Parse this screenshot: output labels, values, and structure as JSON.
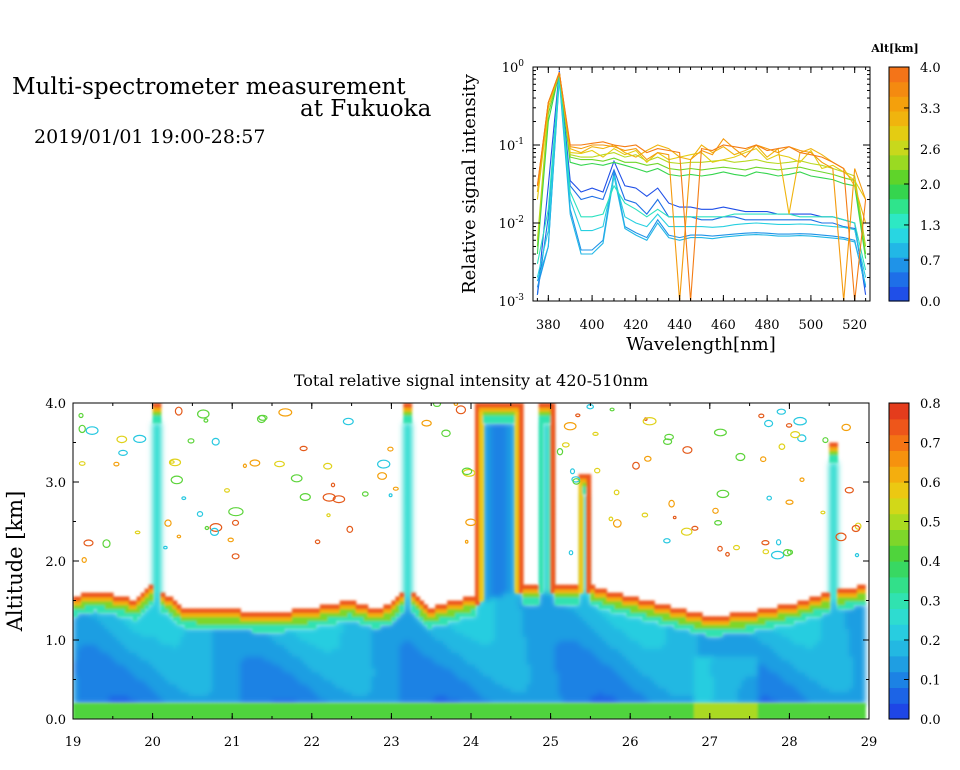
{
  "header": {
    "title_line1": "Multi-spectrometer measurement",
    "title_line2": "at Fukuoka",
    "datetime": "2019/01/01 19:00-28:57"
  },
  "chart_data": [
    {
      "type": "line",
      "title": "",
      "xlabel": "Wavelength[nm]",
      "ylabel": "Relative signal intensity",
      "xlim": [
        373,
        527
      ],
      "ylim": [
        0.001,
        1
      ],
      "yscale": "log",
      "x_ticks": [
        380,
        400,
        420,
        440,
        460,
        480,
        500,
        520
      ],
      "y_ticks": [
        {
          "value": 0.001,
          "base": "10",
          "exp": "-3"
        },
        {
          "value": 0.01,
          "base": "10",
          "exp": "-2"
        },
        {
          "value": 0.1,
          "base": "10",
          "exp": "-1"
        },
        {
          "value": 1,
          "base": "10",
          "exp": "0"
        }
      ],
      "x": [
        375,
        380,
        385,
        390,
        395,
        400,
        405,
        410,
        415,
        420,
        425,
        430,
        435,
        440,
        445,
        450,
        455,
        460,
        465,
        470,
        475,
        480,
        485,
        490,
        495,
        500,
        505,
        510,
        515,
        520,
        525
      ],
      "colorbar": {
        "label": "Alt[km]",
        "tick_labels": [
          "0.0",
          "0.7",
          "1.3",
          "2.0",
          "2.6",
          "3.3",
          "4.0"
        ],
        "range": [
          0,
          4
        ],
        "colors": [
          "#1f4fe8",
          "#1e6fe8",
          "#1f93e8",
          "#22b7e6",
          "#28d6e2",
          "#2de8c4",
          "#2fe48c",
          "#35d54e",
          "#5fd42a",
          "#9ada22",
          "#c8d81c",
          "#e4cc12",
          "#f0b40e",
          "#f4a00c",
          "#f48a10",
          "#f47418"
        ]
      },
      "series": [
        {
          "altitude": 0.3,
          "color": "#1f4fe8",
          "values": [
            0.0012,
            0.03,
            0.9,
            0.035,
            0.025,
            0.028,
            0.025,
            0.062,
            0.03,
            0.028,
            0.022,
            0.028,
            0.018,
            0.016,
            0.016,
            0.015,
            0.015,
            0.016,
            0.015,
            0.014,
            0.014,
            0.014,
            0.013,
            0.013,
            0.013,
            0.013,
            0.012,
            0.012,
            0.011,
            0.01,
            0.0012
          ]
        },
        {
          "altitude": 0.6,
          "color": "#1e70e6",
          "values": [
            0.0012,
            0.012,
            0.8,
            0.03,
            0.02,
            0.022,
            0.02,
            0.048,
            0.02,
            0.018,
            0.013,
            0.02,
            0.012,
            0.012,
            0.012,
            0.011,
            0.011,
            0.012,
            0.012,
            0.011,
            0.011,
            0.011,
            0.011,
            0.011,
            0.011,
            0.011,
            0.01,
            0.01,
            0.009,
            0.0085,
            0.0015
          ]
        },
        {
          "altitude": 0.9,
          "color": "#1f93e8",
          "values": [
            0.0015,
            0.005,
            0.75,
            0.015,
            0.0045,
            0.0045,
            0.006,
            0.045,
            0.009,
            0.0075,
            0.0065,
            0.011,
            0.007,
            0.0065,
            0.007,
            0.007,
            0.0068,
            0.007,
            0.0072,
            0.0074,
            0.0075,
            0.0074,
            0.0072,
            0.0072,
            0.0073,
            0.0072,
            0.007,
            0.0068,
            0.0065,
            0.006,
            0.0015
          ]
        },
        {
          "altitude": 1.1,
          "color": "#22b7e6",
          "values": [
            0.0018,
            0.005,
            0.7,
            0.013,
            0.004,
            0.004,
            0.0055,
            0.04,
            0.0085,
            0.007,
            0.006,
            0.01,
            0.0065,
            0.006,
            0.0065,
            0.0065,
            0.0063,
            0.0066,
            0.0068,
            0.007,
            0.0071,
            0.007,
            0.0068,
            0.0068,
            0.0069,
            0.0068,
            0.0066,
            0.0064,
            0.0062,
            0.0057,
            0.0016
          ]
        },
        {
          "altitude": 1.3,
          "color": "#28d0e0",
          "values": [
            0.002,
            0.008,
            0.75,
            0.02,
            0.008,
            0.008,
            0.009,
            0.04,
            0.012,
            0.01,
            0.009,
            0.013,
            0.009,
            0.009,
            0.009,
            0.009,
            0.0088,
            0.009,
            0.0095,
            0.0098,
            0.01,
            0.0098,
            0.0096,
            0.0096,
            0.0097,
            0.0096,
            0.0093,
            0.009,
            0.0088,
            0.0082,
            0.002
          ]
        },
        {
          "altitude": 1.5,
          "color": "#2de2c0",
          "values": [
            0.003,
            0.015,
            0.8,
            0.025,
            0.012,
            0.012,
            0.013,
            0.03,
            0.018,
            0.015,
            0.012,
            0.015,
            0.012,
            0.012,
            0.012,
            0.012,
            0.012,
            0.012,
            0.013,
            0.013,
            0.013,
            0.013,
            0.013,
            0.013,
            0.012,
            0.012,
            0.012,
            0.012,
            0.011,
            0.01,
            0.0025
          ]
        },
        {
          "altitude": 1.9,
          "color": "#35d54e",
          "values": [
            0.004,
            0.2,
            0.85,
            0.06,
            0.055,
            0.058,
            0.055,
            0.06,
            0.055,
            0.05,
            0.045,
            0.05,
            0.042,
            0.04,
            0.042,
            0.04,
            0.042,
            0.045,
            0.042,
            0.04,
            0.045,
            0.043,
            0.04,
            0.042,
            0.045,
            0.04,
            0.038,
            0.036,
            0.032,
            0.03,
            0.0035
          ]
        },
        {
          "altitude": 2.3,
          "color": "#6fd62a",
          "values": [
            0.005,
            0.25,
            0.85,
            0.07,
            0.065,
            0.065,
            0.062,
            0.068,
            0.06,
            0.06,
            0.055,
            0.058,
            0.05,
            0.048,
            0.05,
            0.048,
            0.05,
            0.052,
            0.05,
            0.048,
            0.052,
            0.05,
            0.048,
            0.05,
            0.052,
            0.048,
            0.045,
            0.042,
            0.038,
            0.035,
            0.004
          ]
        },
        {
          "altitude": 2.7,
          "color": "#b8d820",
          "values": [
            0.006,
            0.3,
            0.85,
            0.075,
            0.07,
            0.07,
            0.075,
            0.08,
            0.07,
            0.075,
            0.062,
            0.07,
            0.06,
            0.058,
            0.06,
            0.06,
            0.062,
            0.064,
            0.06,
            0.062,
            0.065,
            0.06,
            0.058,
            0.06,
            0.063,
            0.058,
            0.055,
            0.05,
            0.045,
            0.04,
            0.005
          ]
        },
        {
          "altitude": 3.0,
          "color": "#e4cc12",
          "values": [
            0.02,
            0.3,
            0.85,
            0.08,
            0.078,
            0.085,
            0.07,
            0.09,
            0.075,
            0.085,
            0.06,
            0.08,
            0.065,
            0.07,
            0.075,
            0.08,
            0.06,
            0.065,
            0.07,
            0.08,
            0.09,
            0.065,
            0.075,
            0.07,
            0.06,
            0.085,
            0.05,
            0.055,
            0.045,
            0.035,
            0.02
          ]
        },
        {
          "altitude": 3.3,
          "color": "#f0b40e",
          "values": [
            0.025,
            0.35,
            0.85,
            0.09,
            0.08,
            0.095,
            0.09,
            0.1,
            0.08,
            0.07,
            0.085,
            0.1,
            0.09,
            0.07,
            0.065,
            0.1,
            0.08,
            0.095,
            0.075,
            0.085,
            0.1,
            0.07,
            0.09,
            0.013,
            0.08,
            0.09,
            0.075,
            0.06,
            0.05,
            0.03,
            0.01
          ]
        },
        {
          "altitude": 3.6,
          "color": "#f49a0c",
          "values": [
            0.03,
            0.35,
            0.85,
            0.095,
            0.09,
            0.1,
            0.1,
            0.095,
            0.085,
            0.09,
            0.065,
            0.08,
            0.075,
            0.001,
            0.065,
            0.085,
            0.075,
            0.12,
            0.09,
            0.07,
            0.1,
            0.09,
            0.08,
            0.095,
            0.085,
            0.08,
            0.06,
            0.05,
            0.001,
            0.05,
            0.02
          ]
        },
        {
          "altitude": 3.9,
          "color": "#f47c14",
          "values": [
            0.03,
            0.35,
            0.85,
            0.1,
            0.1,
            0.105,
            0.11,
            0.1,
            0.095,
            0.1,
            0.08,
            0.09,
            0.085,
            0.08,
            0.001,
            0.09,
            0.085,
            0.1,
            0.095,
            0.09,
            0.1,
            0.085,
            0.09,
            0.095,
            0.08,
            0.075,
            0.07,
            0.06,
            0.05,
            0.001,
            0.02
          ]
        }
      ]
    },
    {
      "type": "heatmap",
      "title": "Total relative signal intensity at 420-510nm",
      "xlabel": "",
      "ylabel": "Altitude [km]",
      "xlim": [
        19,
        29
      ],
      "ylim": [
        0,
        4
      ],
      "x_ticks": [
        19,
        20,
        21,
        22,
        23,
        24,
        25,
        26,
        27,
        28,
        29
      ],
      "y_ticks": [
        "0.0",
        "1.0",
        "2.0",
        "3.0",
        "4.0"
      ],
      "data_time_range": [
        19.0,
        28.95
      ],
      "colorbar": {
        "range": [
          0,
          0.8
        ],
        "tick_labels": [
          "0.0",
          "0.1",
          "0.2",
          "0.3",
          "0.4",
          "0.5",
          "0.6",
          "0.7",
          "0.8"
        ],
        "colors": [
          "#1e46e6",
          "#1c64e6",
          "#1c82e4",
          "#1f9ee2",
          "#23b8e2",
          "#28cde0",
          "#2edcd0",
          "#30e2b0",
          "#32e08a",
          "#38d862",
          "#4fd43c",
          "#7ed62a",
          "#aada20",
          "#d2d818",
          "#ecc812",
          "#f4ae0e",
          "#f6920e",
          "#f47414",
          "#ee561a",
          "#e43c1c"
        ]
      },
      "cloud_top_km": [
        [
          19.0,
          1.55
        ],
        [
          19.25,
          1.62
        ],
        [
          19.5,
          1.58
        ],
        [
          19.8,
          1.5
        ],
        [
          20.0,
          1.7
        ],
        [
          20.2,
          1.55
        ],
        [
          20.4,
          1.4
        ],
        [
          21.0,
          1.38
        ],
        [
          21.5,
          1.35
        ],
        [
          22.0,
          1.4
        ],
        [
          22.5,
          1.5
        ],
        [
          22.8,
          1.4
        ],
        [
          23.0,
          1.45
        ],
        [
          23.2,
          1.7
        ],
        [
          23.45,
          1.4
        ],
        [
          23.8,
          1.5
        ],
        [
          24.0,
          1.55
        ],
        [
          24.5,
          1.7
        ],
        [
          25.0,
          1.7
        ],
        [
          25.5,
          1.7
        ],
        [
          25.8,
          1.6
        ],
        [
          26.2,
          1.5
        ],
        [
          26.6,
          1.4
        ],
        [
          27.0,
          1.3
        ],
        [
          27.5,
          1.35
        ],
        [
          28.0,
          1.45
        ],
        [
          28.5,
          1.6
        ],
        [
          28.95,
          1.7
        ]
      ],
      "columns": [
        {
          "center": 20.05,
          "half_width": 0.07,
          "top": 4.0
        },
        {
          "center": 23.2,
          "half_width": 0.07,
          "top": 4.0
        },
        {
          "center": 24.35,
          "half_width": 0.3,
          "top": 4.0
        },
        {
          "center": 24.93,
          "half_width": 0.1,
          "top": 4.0
        },
        {
          "center": 25.42,
          "half_width": 0.06,
          "top": 3.1
        },
        {
          "center": 28.55,
          "half_width": 0.07,
          "top": 3.5
        }
      ]
    }
  ]
}
